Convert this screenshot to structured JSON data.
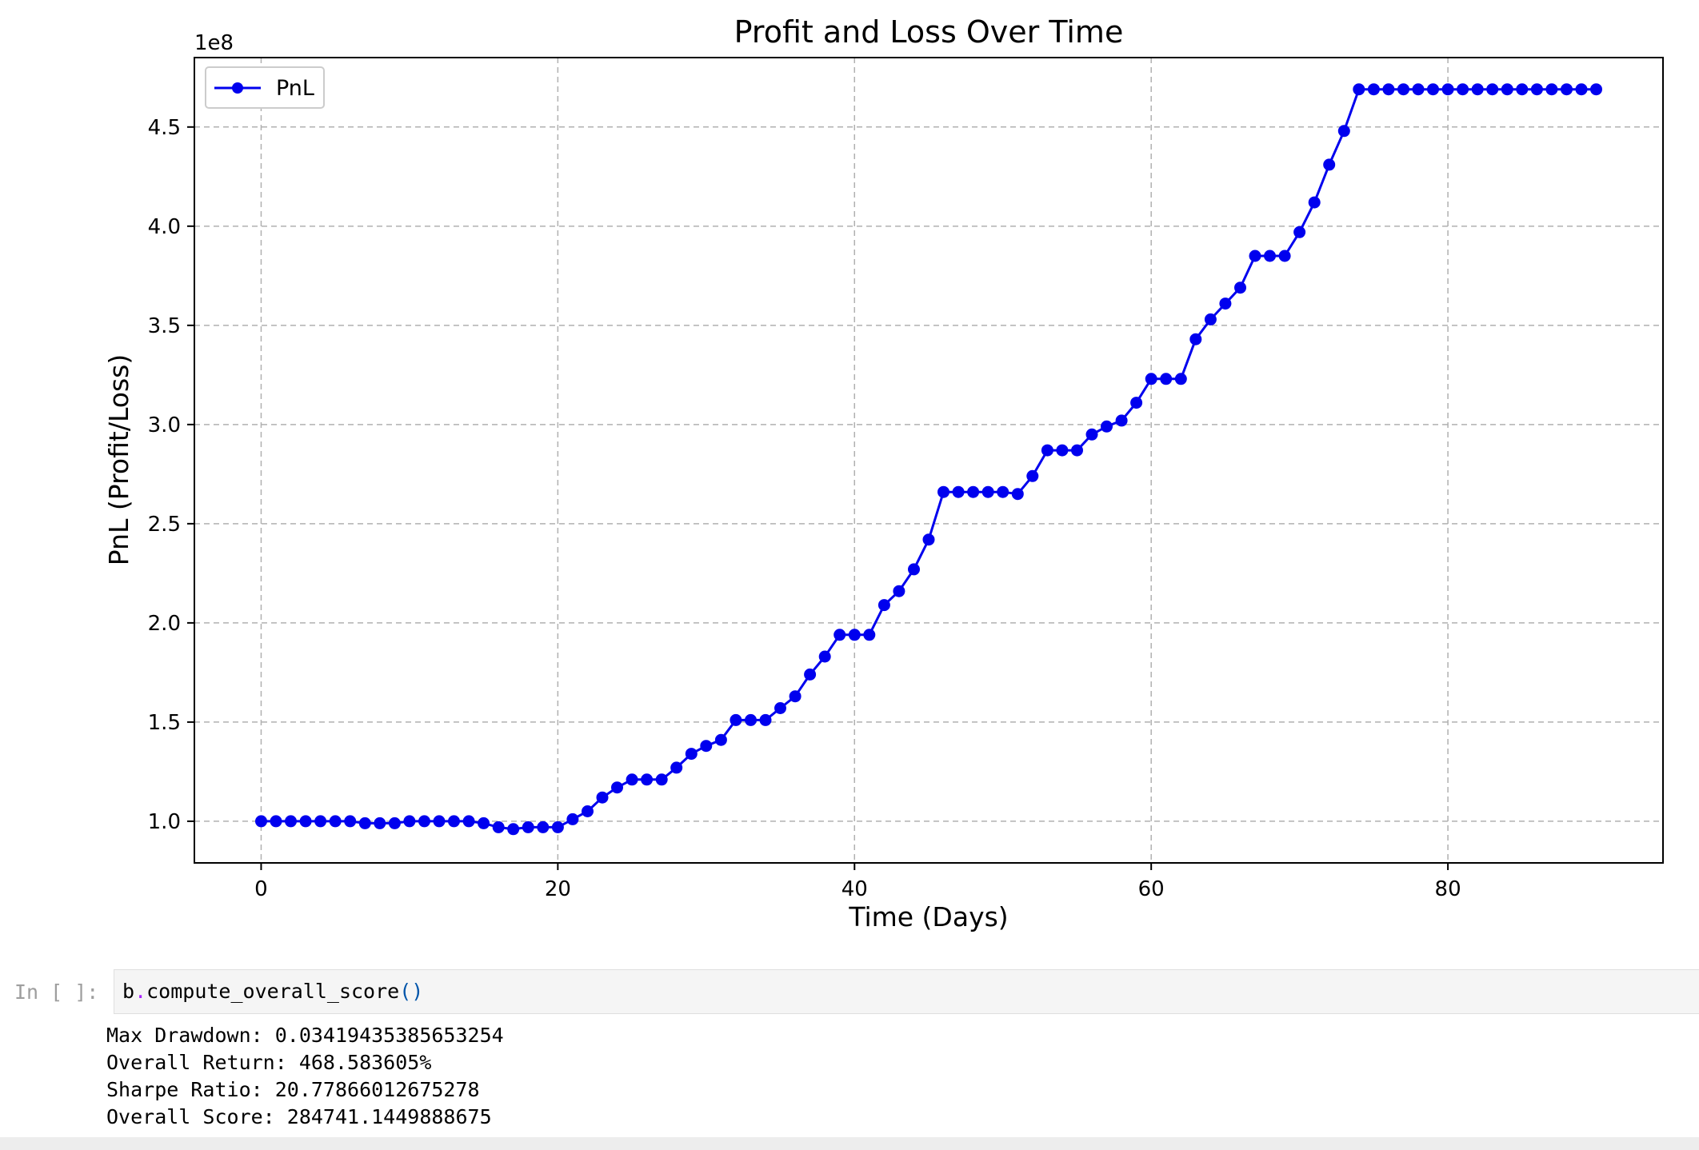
{
  "chart_data": {
    "type": "line",
    "title": "Profit and Loss Over Time",
    "xlabel": "Time (Days)",
    "ylabel": "PnL (Profit/Loss)",
    "y_offset_label": "1e8",
    "xlim": [
      -4.5,
      94.5
    ],
    "ylim": [
      0.79,
      4.85
    ],
    "x_ticks": [
      0,
      20,
      40,
      60,
      80
    ],
    "x_tick_labels": [
      "0",
      "20",
      "40",
      "60",
      "80"
    ],
    "y_ticks": [
      1.0,
      1.5,
      2.0,
      2.5,
      3.0,
      3.5,
      4.0,
      4.5
    ],
    "y_tick_labels": [
      "1.0",
      "1.5",
      "2.0",
      "2.5",
      "3.0",
      "3.5",
      "4.0",
      "4.5"
    ],
    "grid": true,
    "legend_position": "top-left",
    "line_color": "#0000ee",
    "series": [
      {
        "name": "PnL",
        "x": [
          0,
          1,
          2,
          3,
          4,
          5,
          6,
          7,
          8,
          9,
          10,
          11,
          12,
          13,
          14,
          15,
          16,
          17,
          18,
          19,
          20,
          21,
          22,
          23,
          24,
          25,
          26,
          27,
          28,
          29,
          30,
          31,
          32,
          33,
          34,
          35,
          36,
          37,
          38,
          39,
          40,
          41,
          42,
          43,
          44,
          45,
          46,
          47,
          48,
          49,
          50,
          51,
          52,
          53,
          54,
          55,
          56,
          57,
          58,
          59,
          60,
          61,
          62,
          63,
          64,
          65,
          66,
          67,
          68,
          69,
          70,
          71,
          72,
          73,
          74,
          75,
          76,
          77,
          78,
          79,
          80,
          81,
          82,
          83,
          84,
          85,
          86,
          87,
          88,
          89,
          90
        ],
        "values": [
          1.0,
          1.0,
          1.0,
          1.0,
          1.0,
          1.0,
          1.0,
          0.99,
          0.99,
          0.99,
          1.0,
          1.0,
          1.0,
          1.0,
          1.0,
          0.99,
          0.97,
          0.96,
          0.97,
          0.97,
          0.97,
          1.01,
          1.05,
          1.12,
          1.17,
          1.21,
          1.21,
          1.21,
          1.27,
          1.34,
          1.38,
          1.41,
          1.51,
          1.51,
          1.51,
          1.57,
          1.63,
          1.74,
          1.83,
          1.94,
          1.94,
          1.94,
          2.09,
          2.16,
          2.27,
          2.42,
          2.66,
          2.66,
          2.66,
          2.66,
          2.66,
          2.65,
          2.74,
          2.87,
          2.87,
          2.87,
          2.95,
          2.99,
          3.02,
          3.11,
          3.23,
          3.23,
          3.23,
          3.43,
          3.53,
          3.61,
          3.69,
          3.85,
          3.85,
          3.85,
          3.97,
          4.12,
          4.31,
          4.48,
          4.69,
          4.69,
          4.69,
          4.69,
          4.69,
          4.69,
          4.69,
          4.69,
          4.69,
          4.69,
          4.69,
          4.69,
          4.69,
          4.69,
          4.69,
          4.69,
          4.69
        ]
      }
    ]
  },
  "notebook": {
    "prompt": "In [ ]:",
    "code": {
      "object": "b",
      "dot": ".",
      "method": "compute_overall_score",
      "parens": "()"
    },
    "output": {
      "max_drawdown": "Max Drawdown: 0.03419435385653254",
      "overall_return": "Overall Return: 468.583605%",
      "sharpe_ratio": "Sharpe Ratio: 20.77866012675278",
      "overall_score": "Overall Score: 284741.1449888675"
    }
  }
}
